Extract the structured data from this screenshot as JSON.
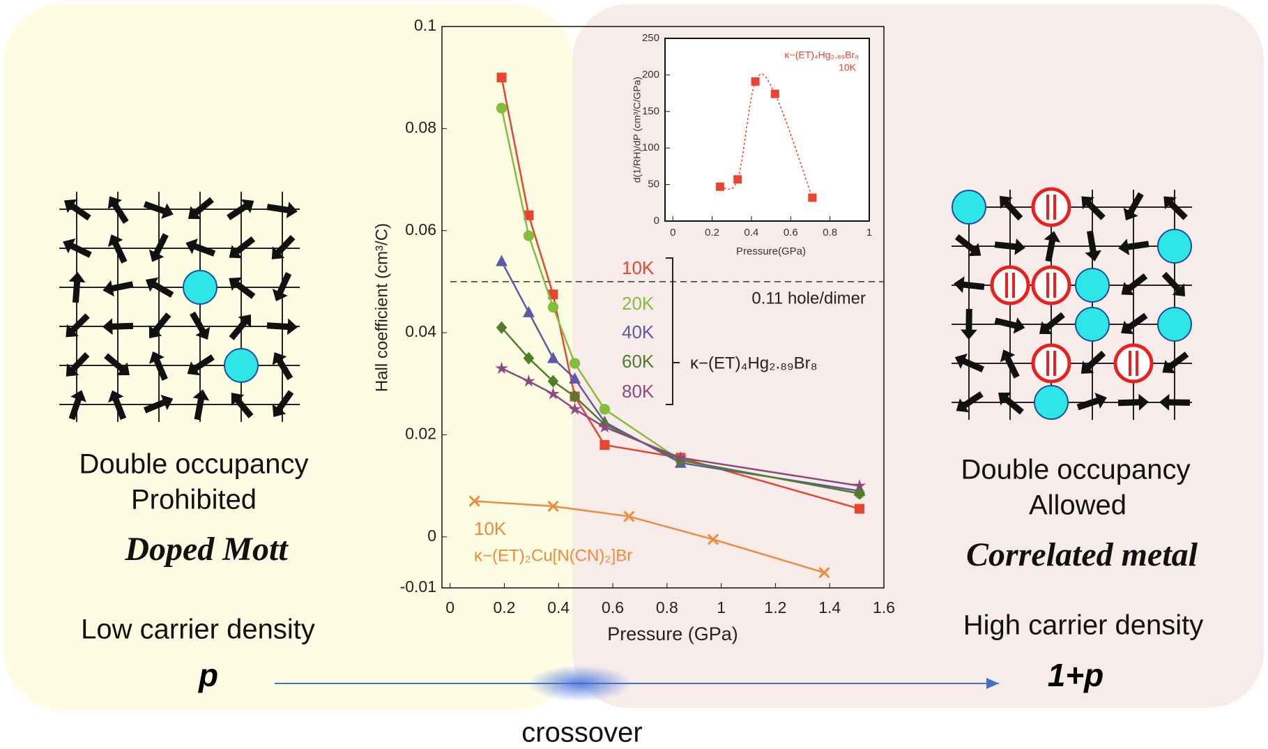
{
  "chart_data": [
    {
      "type": "line",
      "xlabel": "Pressure (GPa)",
      "ylabel": "Hall coefficient (cm³/C)",
      "xlim": [
        -0.03,
        1.6
      ],
      "ylim": [
        -0.01,
        0.1
      ],
      "xticks": [
        0,
        0.2,
        0.4,
        0.6,
        0.8,
        1,
        1.2,
        1.4,
        1.6
      ],
      "yticks": [
        -0.01,
        0,
        0.02,
        0.04,
        0.06,
        0.08,
        0.1
      ],
      "reference_line": {
        "value": 0.05,
        "label": "0.11 hole/dimer"
      },
      "group_label": "κ−(ET)₄Hg₂.₈₉Br₈",
      "series": [
        {
          "name": "10K",
          "color": "#e8442e",
          "marker": "square",
          "x": [
            0.19,
            0.29,
            0.38,
            0.46,
            0.57,
            0.85,
            1.51
          ],
          "values": [
            0.09,
            0.063,
            0.0475,
            0.0275,
            0.018,
            0.0155,
            0.0055
          ]
        },
        {
          "name": "20K",
          "color": "#84bc3c",
          "marker": "circle",
          "x": [
            0.19,
            0.29,
            0.38,
            0.46,
            0.57,
            0.85,
            1.51
          ],
          "values": [
            0.084,
            0.059,
            0.045,
            0.034,
            0.025,
            0.015,
            0.0085
          ]
        },
        {
          "name": "40K",
          "color": "#5a5aa6",
          "marker": "triangle",
          "x": [
            0.19,
            0.29,
            0.38,
            0.46,
            0.57,
            0.85,
            1.51
          ],
          "values": [
            0.054,
            0.044,
            0.035,
            0.031,
            0.0225,
            0.0145,
            0.009
          ]
        },
        {
          "name": "60K",
          "color": "#4f7d2a",
          "marker": "diamond",
          "x": [
            0.19,
            0.29,
            0.38,
            0.46,
            0.57,
            0.85,
            1.51
          ],
          "values": [
            0.041,
            0.035,
            0.0305,
            0.0275,
            0.022,
            0.015,
            0.0085
          ]
        },
        {
          "name": "80K",
          "color": "#8b4a80",
          "marker": "star",
          "x": [
            0.19,
            0.29,
            0.38,
            0.46,
            0.57,
            0.85,
            1.51
          ],
          "values": [
            0.033,
            0.0305,
            0.028,
            0.025,
            0.0215,
            0.0155,
            0.01
          ]
        },
        {
          "name": "10K",
          "compound": "κ−(ET)₂Cu[N(CN)₂]Br",
          "color": "#f08a3c",
          "marker": "cross",
          "x": [
            0.09,
            0.38,
            0.66,
            0.97,
            1.38
          ],
          "values": [
            0.007,
            0.006,
            0.004,
            -0.0005,
            -0.007
          ]
        }
      ]
    },
    {
      "type": "scatter",
      "xlabel": "Pressure(GPa)",
      "ylabel": "d(1/RH)/dP (cm³/C/GPa)",
      "annotation": [
        "κ−(ET)₄Hg₂.₈₉Br₈",
        "10K"
      ],
      "xlim": [
        -0.04,
        1
      ],
      "ylim": [
        0,
        250
      ],
      "xticks": [
        0,
        0.2,
        0.4,
        0.6,
        0.8,
        1
      ],
      "yticks": [
        0,
        50,
        100,
        150,
        200,
        250
      ],
      "color": "#e8442e",
      "x": [
        0.24,
        0.33,
        0.42,
        0.52,
        0.71
      ],
      "values": [
        47,
        57,
        191,
        174,
        32
      ]
    }
  ],
  "left_panel": {
    "lines": [
      "Double occupancy",
      "Prohibited"
    ],
    "regime": "Doped Mott",
    "density": "Low carrier density",
    "symbol": "p"
  },
  "right_panel": {
    "lines": [
      "Double occupancy",
      "Allowed"
    ],
    "regime": "Correlated metal",
    "density": "High carrier density",
    "symbol": "1+p"
  },
  "crossover": "crossover"
}
